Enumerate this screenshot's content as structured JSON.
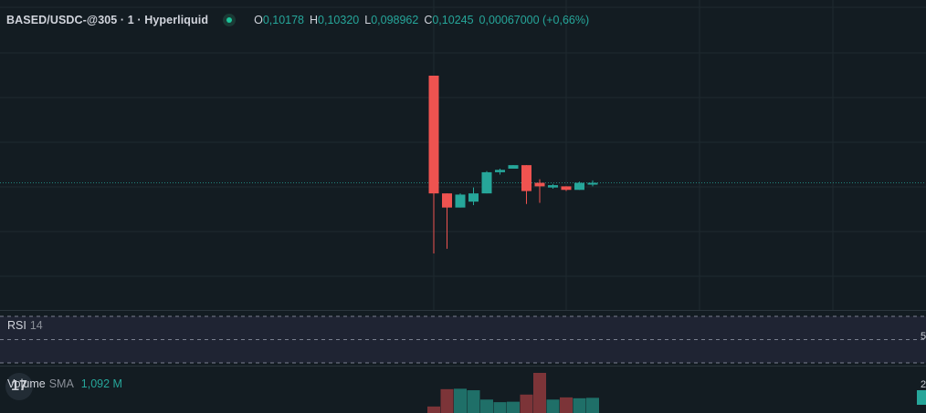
{
  "header": {
    "symbol": "BASED/USDC-@305 · 1 · Hyperliquid",
    "o_label": "O",
    "o_value": "0,10178",
    "h_label": "H",
    "h_value": "0,10320",
    "l_label": "L",
    "l_value": "0,098962",
    "c_label": "C",
    "c_value": "0,10245",
    "change": "0,00067000 (+0,66%)"
  },
  "rsi": {
    "label": "RSI",
    "period": "14"
  },
  "volume": {
    "label": "Volume",
    "sma_label": "SMA",
    "value": "1,092 M"
  },
  "logo": {
    "text": "17"
  },
  "edge_labels": {
    "rsi_right": "5",
    "vol_right": "2"
  },
  "colors": {
    "up": "#26a69a",
    "down": "#ef5350",
    "background": "#131c22",
    "grid": "#1f2a30",
    "rsi_band": "#1f2433"
  },
  "chart_data": {
    "type": "candlestick",
    "interval": "1",
    "last_price_line": true,
    "grid": true,
    "candles": [
      {
        "o": 0.107,
        "h": 0.107,
        "l": 0.09945,
        "c": 0.102
      },
      {
        "o": 0.102,
        "h": 0.102,
        "l": 0.09965,
        "c": 0.1014
      },
      {
        "o": 0.1014,
        "h": 0.102,
        "l": 0.1014,
        "c": 0.10195
      },
      {
        "o": 0.10165,
        "h": 0.10225,
        "l": 0.1015,
        "c": 0.102
      },
      {
        "o": 0.102,
        "h": 0.10295,
        "l": 0.102,
        "c": 0.1029
      },
      {
        "o": 0.1029,
        "h": 0.10305,
        "l": 0.1028,
        "c": 0.103
      },
      {
        "o": 0.10305,
        "h": 0.1032,
        "l": 0.10305,
        "c": 0.1032
      },
      {
        "o": 0.1032,
        "h": 0.1032,
        "l": 0.10155,
        "c": 0.1021
      },
      {
        "o": 0.10245,
        "h": 0.1026,
        "l": 0.1016,
        "c": 0.1023
      },
      {
        "o": 0.10225,
        "h": 0.1024,
        "l": 0.1022,
        "c": 0.10235
      },
      {
        "o": 0.1023,
        "h": 0.1023,
        "l": 0.1021,
        "c": 0.10215
      },
      {
        "o": 0.10215,
        "h": 0.1025,
        "l": 0.10215,
        "c": 0.10245
      },
      {
        "o": 0.10245,
        "h": 0.10255,
        "l": 0.1023,
        "c": 0.10245
      }
    ],
    "volumes": [
      0.3,
      1.1,
      1.12,
      1.05,
      0.62,
      0.5,
      0.52,
      0.85,
      1.85,
      0.62,
      0.72,
      0.68,
      0.7
    ],
    "last_price": 0.10245
  }
}
